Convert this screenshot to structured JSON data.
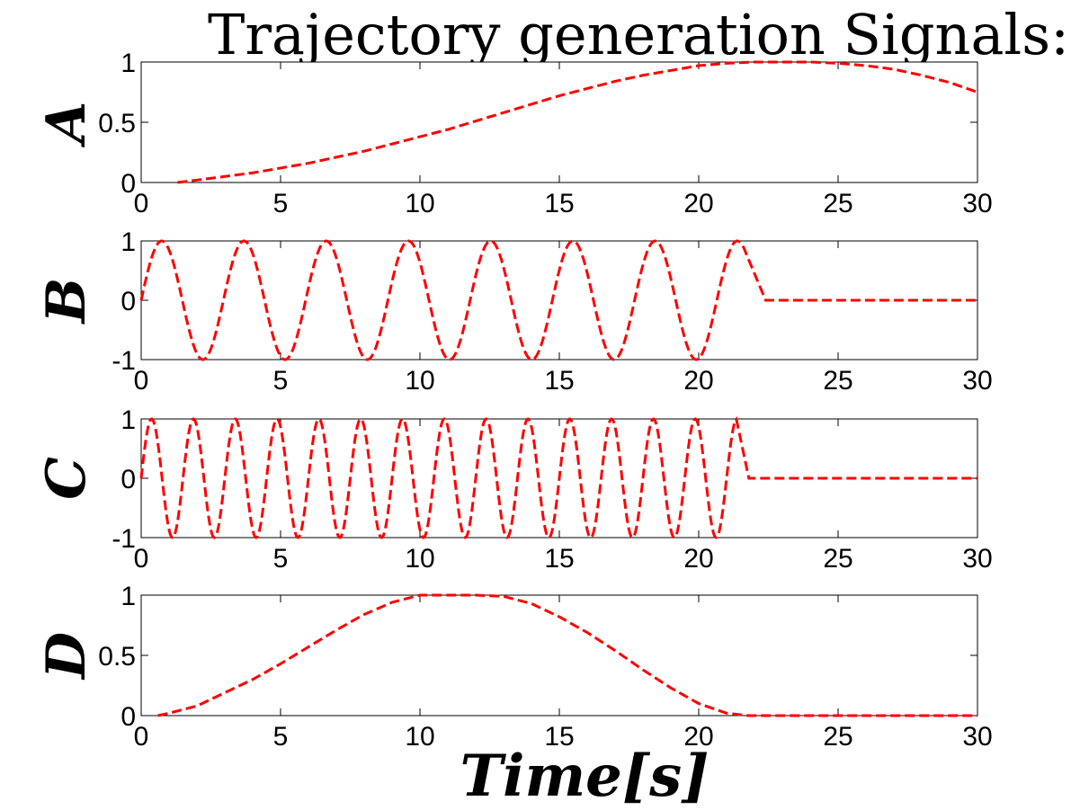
{
  "figure": {
    "title": "Trajectory generation Signals:",
    "xlabel": "Time[s]"
  },
  "colors": {
    "series": "#ff0000"
  },
  "chart_data": [
    {
      "type": "line",
      "ylabel": "A",
      "xlim": [
        0,
        30
      ],
      "ylim": [
        0,
        1
      ],
      "xticks": [
        "0",
        "5",
        "10",
        "15",
        "20",
        "25",
        "30"
      ],
      "yticks": [
        "0",
        "0.5",
        "1"
      ],
      "grid": false,
      "series": [
        {
          "style": "dashed",
          "x": [
            1.3,
            2,
            3,
            4,
            5,
            6,
            7,
            8,
            9,
            10,
            11,
            12,
            13,
            14,
            15,
            16,
            17,
            18,
            19,
            20,
            21,
            22,
            23,
            24,
            25,
            26,
            27,
            28,
            29,
            30
          ],
          "y": [
            0.0,
            0.02,
            0.05,
            0.08,
            0.12,
            0.16,
            0.21,
            0.26,
            0.32,
            0.38,
            0.44,
            0.51,
            0.58,
            0.65,
            0.72,
            0.78,
            0.84,
            0.89,
            0.93,
            0.97,
            0.99,
            1.0,
            1.0,
            1.0,
            0.99,
            0.97,
            0.94,
            0.89,
            0.83,
            0.75
          ]
        }
      ]
    },
    {
      "type": "line",
      "ylabel": "B",
      "xlim": [
        0,
        30
      ],
      "ylim": [
        -1,
        1
      ],
      "xticks": [
        "0",
        "5",
        "10",
        "15",
        "20",
        "25",
        "30"
      ],
      "yticks": [
        "-1",
        "0",
        "1"
      ],
      "grid": false,
      "series": [
        {
          "style": "dashed",
          "function": "sine",
          "amplitude": 1,
          "period": 2.95,
          "active_until": 21.7,
          "ramp_to_zero_at": 22.4,
          "y_after": 0
        }
      ]
    },
    {
      "type": "line",
      "ylabel": "C",
      "xlim": [
        0,
        30
      ],
      "ylim": [
        -1,
        1
      ],
      "xticks": [
        "0",
        "5",
        "10",
        "15",
        "20",
        "25",
        "30"
      ],
      "yticks": [
        "-1",
        "0",
        "1"
      ],
      "grid": false,
      "series": [
        {
          "style": "dashed",
          "function": "sine",
          "amplitude": 1,
          "period": 1.5,
          "active_until": 21.35,
          "ramp_to_zero_at": 21.8,
          "y_after": 0
        }
      ]
    },
    {
      "type": "line",
      "ylabel": "D",
      "xlim": [
        0,
        30
      ],
      "ylim": [
        0,
        1
      ],
      "xticks": [
        "0",
        "5",
        "10",
        "15",
        "20",
        "25",
        "30"
      ],
      "yticks": [
        "0",
        "0.5",
        "1"
      ],
      "grid": false,
      "series": [
        {
          "style": "dashed",
          "x": [
            0.6,
            1,
            2,
            3,
            4,
            5,
            6,
            7,
            8,
            9,
            10,
            11,
            12,
            13,
            14,
            15,
            16,
            17,
            18,
            19,
            20,
            21,
            21.8,
            22.5,
            25,
            28,
            30
          ],
          "y": [
            0.0,
            0.02,
            0.08,
            0.19,
            0.3,
            0.43,
            0.57,
            0.71,
            0.84,
            0.94,
            1.0,
            1.0,
            1.0,
            0.99,
            0.93,
            0.82,
            0.69,
            0.54,
            0.38,
            0.23,
            0.1,
            0.02,
            0.0,
            0.0,
            0.0,
            0.0,
            0.0
          ]
        }
      ]
    }
  ]
}
